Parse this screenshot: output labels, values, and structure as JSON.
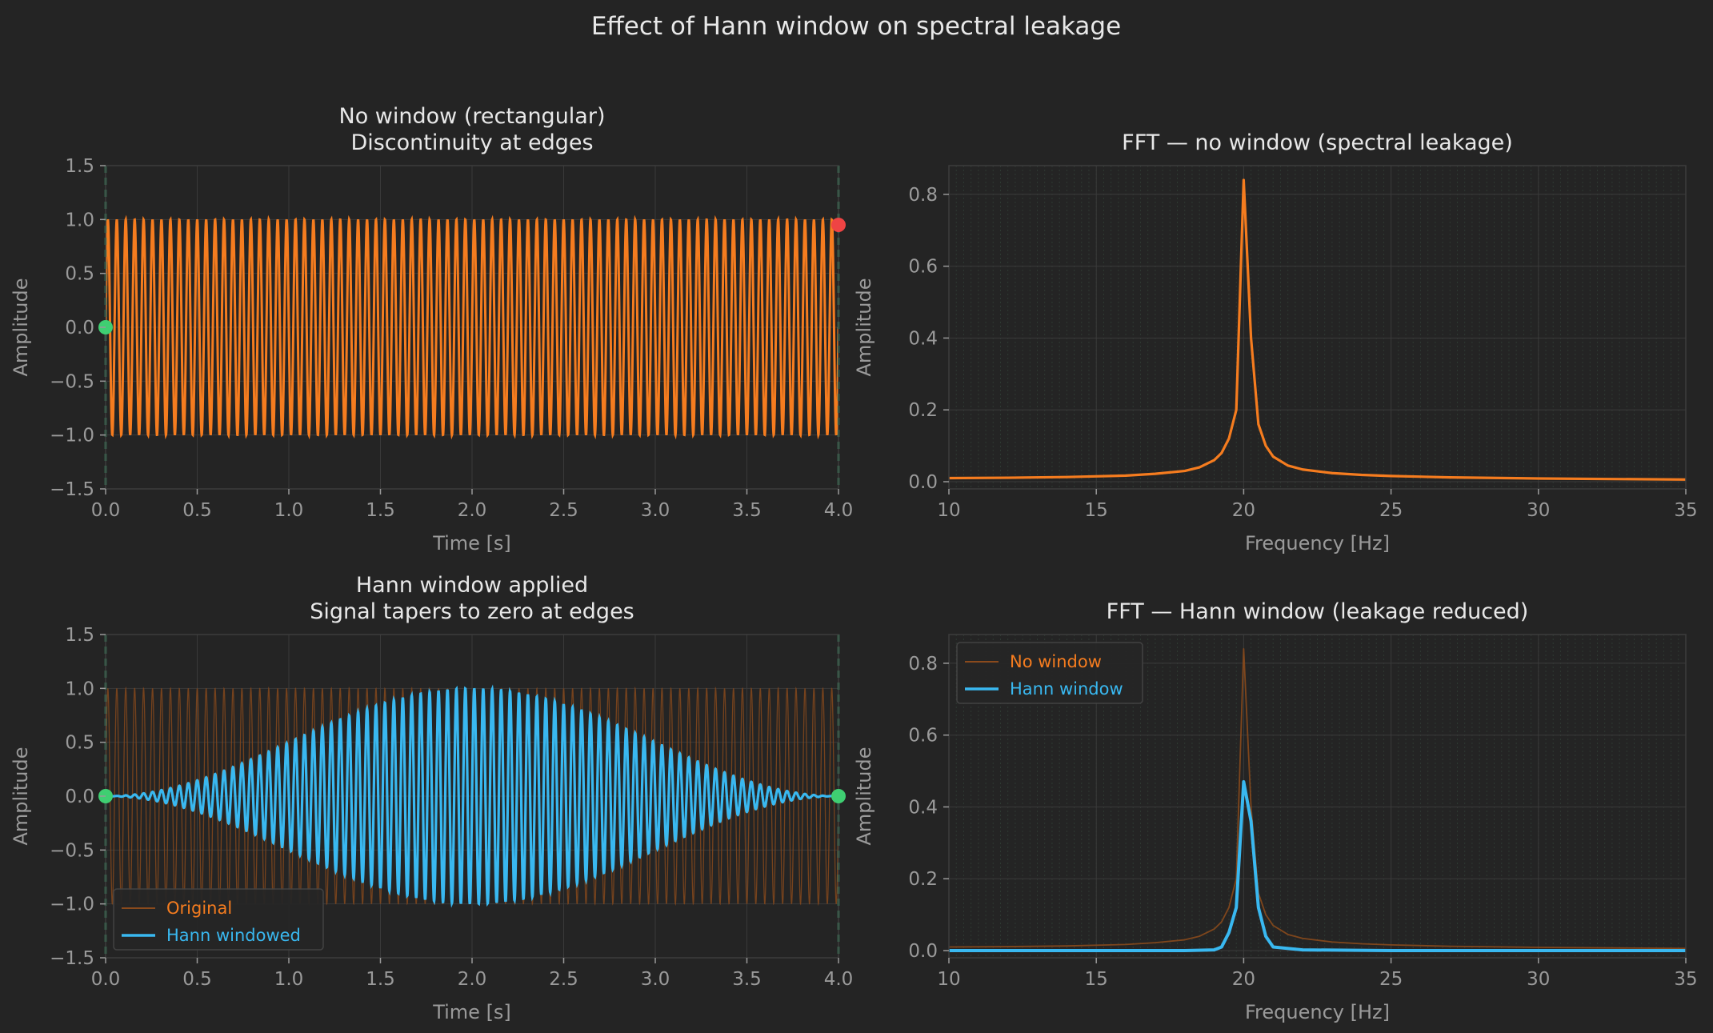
{
  "suptitle": "Effect of Hann window on spectral leakage",
  "colors": {
    "background": "#242424",
    "grid": "#3a3a3a",
    "spine": "#3c3c3c",
    "text": "#e8e8e8",
    "muted": "#9a9a9a",
    "orange": "#f57c1f",
    "orange_dim": "#8a4a1c",
    "cyan": "#39b8f0",
    "green": "#3fcf72",
    "red": "#ef4444",
    "dashed": "#3f9e6c"
  },
  "chart_data": [
    {
      "id": "time-rect",
      "type": "line",
      "title_lines": [
        "No window (rectangular)",
        "Discontinuity at edges"
      ],
      "xlabel": "Time [s]",
      "ylabel": "Amplitude",
      "xlim": [
        0,
        4
      ],
      "ylim": [
        -1.5,
        1.5
      ],
      "xticks": [
        "0.0",
        "0.5",
        "1.0",
        "1.5",
        "2.0",
        "2.5",
        "3.0",
        "3.5",
        "4.0"
      ],
      "yticks": [
        "−1.5",
        "−1.0",
        "−0.5",
        "0.0",
        "0.5",
        "1.0",
        "1.5"
      ],
      "grid": true,
      "signal": {
        "kind": "sine",
        "frequency_hz": 20.5,
        "amplitude": 1.0
      },
      "edge_markers": [
        {
          "x": 0.0,
          "y": 0.0,
          "color": "green"
        },
        {
          "x": 4.0,
          "y": 0.95,
          "color": "red"
        }
      ],
      "edge_lines_x": [
        0.0,
        4.0
      ]
    },
    {
      "id": "fft-rect",
      "type": "line",
      "title_lines": [
        "FFT — no window (spectral leakage)"
      ],
      "xlabel": "Frequency [Hz]",
      "ylabel": "Amplitude",
      "xlim": [
        10,
        35
      ],
      "ylim": [
        -0.02,
        0.88
      ],
      "xticks": [
        "10",
        "15",
        "20",
        "25",
        "30",
        "35"
      ],
      "yticks": [
        "0.0",
        "0.2",
        "0.4",
        "0.6",
        "0.8"
      ],
      "grid": true,
      "series": [
        {
          "name": "",
          "x": [
            10,
            12,
            14,
            16,
            17,
            18,
            18.5,
            19,
            19.25,
            19.5,
            19.75,
            20,
            20.25,
            20.5,
            20.75,
            21,
            21.5,
            22,
            23,
            24,
            25,
            27,
            30,
            35
          ],
          "y": [
            0.01,
            0.011,
            0.013,
            0.017,
            0.022,
            0.03,
            0.04,
            0.06,
            0.08,
            0.12,
            0.2,
            0.84,
            0.4,
            0.16,
            0.1,
            0.07,
            0.045,
            0.034,
            0.024,
            0.019,
            0.016,
            0.012,
            0.009,
            0.006
          ]
        }
      ]
    },
    {
      "id": "time-hann",
      "type": "line",
      "title_lines": [
        "Hann window applied",
        "Signal tapers to zero at edges"
      ],
      "xlabel": "Time [s]",
      "ylabel": "Amplitude",
      "xlim": [
        0,
        4
      ],
      "ylim": [
        -1.5,
        1.5
      ],
      "xticks": [
        "0.0",
        "0.5",
        "1.0",
        "1.5",
        "2.0",
        "2.5",
        "3.0",
        "3.5",
        "4.0"
      ],
      "yticks": [
        "−1.5",
        "−1.0",
        "−0.5",
        "0.0",
        "0.5",
        "1.0",
        "1.5"
      ],
      "grid": true,
      "signal": {
        "kind": "hann-windowed sine",
        "frequency_hz": 20.5,
        "amplitude": 1.0
      },
      "legend": {
        "position": "lower-left",
        "entries": [
          {
            "label": "Original",
            "color": "orange"
          },
          {
            "label": "Hann windowed",
            "color": "cyan"
          }
        ]
      },
      "edge_markers": [
        {
          "x": 0.0,
          "y": 0.0,
          "color": "green"
        },
        {
          "x": 4.0,
          "y": 0.0,
          "color": "green"
        }
      ],
      "edge_lines_x": [
        0.0,
        4.0
      ]
    },
    {
      "id": "fft-hann",
      "type": "line",
      "title_lines": [
        "FFT — Hann window (leakage reduced)"
      ],
      "xlabel": "Frequency [Hz]",
      "ylabel": "Amplitude",
      "xlim": [
        10,
        35
      ],
      "ylim": [
        -0.02,
        0.88
      ],
      "xticks": [
        "10",
        "15",
        "20",
        "25",
        "30",
        "35"
      ],
      "yticks": [
        "0.0",
        "0.2",
        "0.4",
        "0.6",
        "0.8"
      ],
      "grid": true,
      "legend": {
        "position": "upper-left",
        "entries": [
          {
            "label": "No window",
            "color": "orange"
          },
          {
            "label": "Hann window",
            "color": "cyan"
          }
        ]
      },
      "series": [
        {
          "name": "No window",
          "x": [
            10,
            12,
            14,
            16,
            17,
            18,
            18.5,
            19,
            19.25,
            19.5,
            19.75,
            20,
            20.25,
            20.5,
            20.75,
            21,
            21.5,
            22,
            23,
            24,
            25,
            27,
            30,
            35
          ],
          "y": [
            0.01,
            0.011,
            0.013,
            0.017,
            0.022,
            0.03,
            0.04,
            0.06,
            0.08,
            0.12,
            0.2,
            0.84,
            0.4,
            0.16,
            0.1,
            0.07,
            0.045,
            0.034,
            0.024,
            0.019,
            0.016,
            0.012,
            0.009,
            0.006
          ]
        },
        {
          "name": "Hann window",
          "x": [
            10,
            15,
            18,
            19,
            19.25,
            19.5,
            19.75,
            20,
            20.25,
            20.5,
            20.75,
            21,
            22,
            25,
            30,
            35
          ],
          "y": [
            0.0,
            0.0,
            0.0,
            0.002,
            0.01,
            0.05,
            0.12,
            0.47,
            0.36,
            0.12,
            0.04,
            0.01,
            0.002,
            0.0,
            0.0,
            0.0
          ]
        }
      ]
    }
  ]
}
